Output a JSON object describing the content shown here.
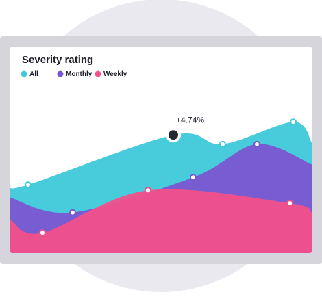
{
  "chart_data": {
    "type": "area",
    "title": "Severity rating",
    "xlim": [
      0,
      440
    ],
    "ylim": [
      0,
      100
    ],
    "series": [
      {
        "name": "All",
        "color": "#3ec9da",
        "x": [
          0,
          26,
          238,
          310,
          413,
          440
        ],
        "values": [
          37,
          37,
          64,
          59,
          71,
          60
        ]
      },
      {
        "name": "Monthly",
        "color": "#7b55d0",
        "x": [
          0,
          91,
          267,
          360,
          440
        ],
        "values": [
          30,
          22,
          41,
          59,
          48
        ]
      },
      {
        "name": "Weekly",
        "color": "#f2508a",
        "x": [
          0,
          47,
          201,
          408,
          440
        ],
        "values": [
          18,
          11,
          34,
          27,
          22
        ]
      }
    ],
    "annotation": {
      "text": "+4.74%",
      "series": 0,
      "index": 2
    }
  }
}
